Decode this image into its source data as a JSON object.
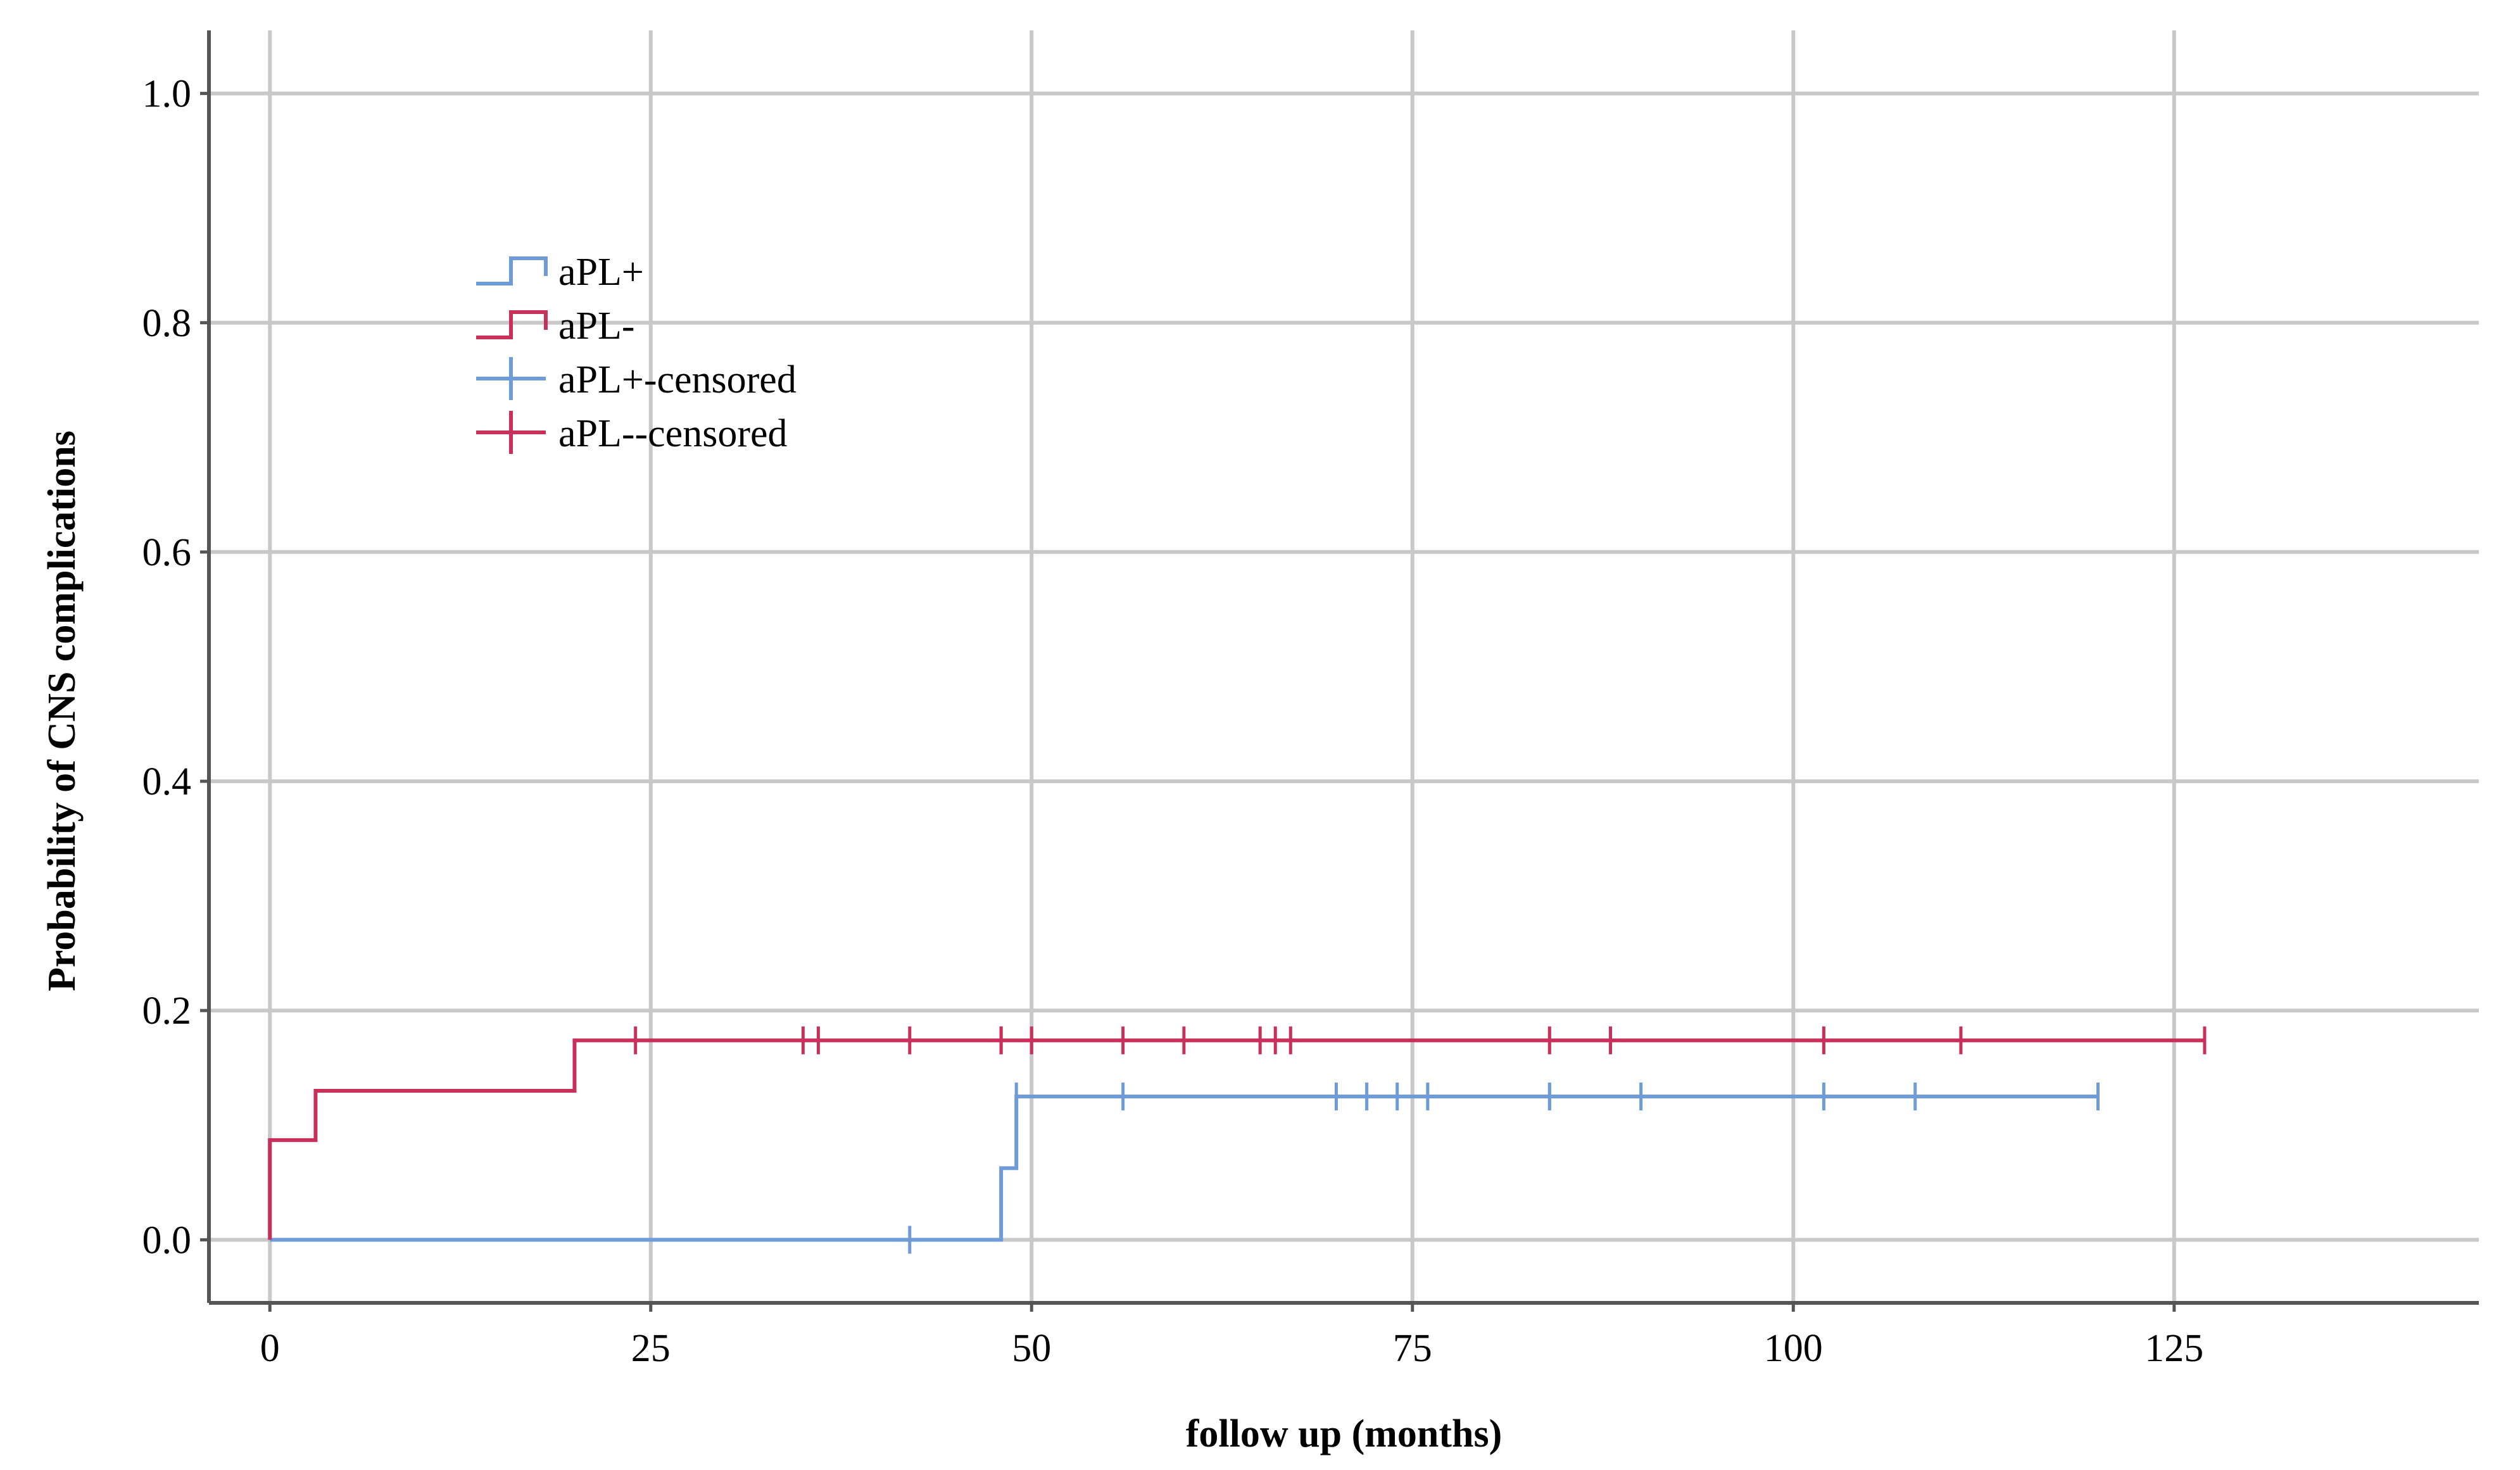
{
  "chart_data": {
    "type": "line",
    "subtype": "kaplan-meier step curve (cumulative incidence)",
    "title": "",
    "xlabel": "follow up (months)",
    "ylabel": "Probability of CNS complications",
    "xlim": [
      -4,
      145
    ],
    "ylim": [
      -0.055,
      1.055
    ],
    "xticks": [
      0,
      25,
      50,
      75,
      100,
      125
    ],
    "xtick_labels": [
      "0",
      "25",
      "50",
      "75",
      "100",
      "125"
    ],
    "yticks": [
      0.0,
      0.2,
      0.4,
      0.6,
      0.8,
      1.0
    ],
    "ytick_labels": [
      "0.0",
      "0.2",
      "0.4",
      "0.6",
      "0.8",
      "1.0"
    ],
    "grid": true,
    "legend_position": "upper-left",
    "legend": [
      "aPL+",
      "aPL-",
      "aPL+-censored",
      "aPL--censored"
    ],
    "colors": {
      "aPL+": "#6f9bd8",
      "aPL-": "#c8305a",
      "grid": "#c8c8c8",
      "axis": "#555555"
    },
    "series": [
      {
        "name": "aPL+",
        "color": "#6f9bd8",
        "steps": [
          {
            "x": 0,
            "y": 0.0
          },
          {
            "x": 48,
            "y": 0.0625
          },
          {
            "x": 49,
            "y": 0.125
          },
          {
            "x": 120,
            "y": 0.125
          }
        ],
        "censored": [
          42,
          49,
          56,
          70,
          72,
          74,
          76,
          84,
          84,
          90,
          102,
          108,
          120
        ]
      },
      {
        "name": "aPL-",
        "color": "#c8305a",
        "steps": [
          {
            "x": 0,
            "y": 0.0
          },
          {
            "x": 0,
            "y": 0.087
          },
          {
            "x": 3,
            "y": 0.13
          },
          {
            "x": 20,
            "y": 0.174
          },
          {
            "x": 127,
            "y": 0.174
          }
        ],
        "censored": [
          24,
          35,
          36,
          42,
          48,
          48,
          50,
          56,
          60,
          65,
          66,
          67,
          84,
          88,
          102,
          111,
          127
        ]
      }
    ]
  }
}
